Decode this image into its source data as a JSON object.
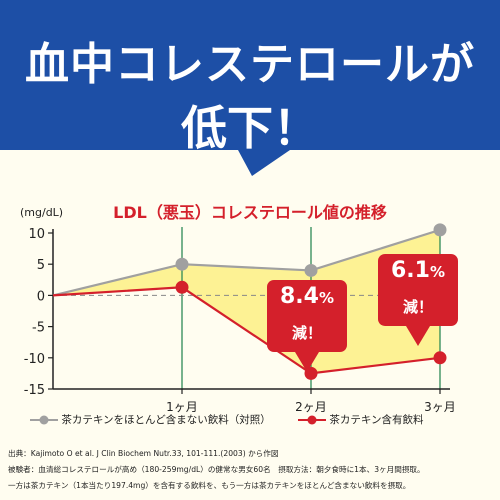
{
  "headline": {
    "line1": "血中コレステロールが",
    "line2": "低下！"
  },
  "colors": {
    "banner": "#1d4fa6",
    "control": "#a0a0a0",
    "catechin": "#d4202b",
    "fill": "#fdf18a",
    "grid": "#2e8b57"
  },
  "chart_data": {
    "type": "line",
    "title": "LDL（悪玉）コレステロール値の推移",
    "unit_label": "(mg/dL)",
    "categories": [
      "0",
      "1ヶ月",
      "2ヶ月",
      "3ヶ月"
    ],
    "x_tick_labels": [
      "1ヶ月",
      "2ヶ月",
      "3ヶ月"
    ],
    "ylim": [
      -15,
      10
    ],
    "yticks": [
      10,
      5,
      0,
      -5,
      -10,
      -15
    ],
    "grid": "vertical at months, dashed at 0",
    "legend_position": "bottom",
    "series": [
      {
        "name": "茶カテキンをほとんど含まない飲料（対照）",
        "values": [
          0,
          5,
          4,
          10.5
        ]
      },
      {
        "name": "茶カテキン含有飲料",
        "values": [
          0,
          1.3,
          -12.5,
          -10
        ]
      }
    ],
    "annotations": [
      {
        "at": "2ヶ月",
        "percent": "8.4",
        "unit": "%",
        "text": "減！"
      },
      {
        "at": "3ヶ月",
        "percent": "6.1",
        "unit": "%",
        "text": "減！"
      }
    ]
  },
  "footnotes": {
    "source": "出典：Kajimoto O et al. J Clin Biochem Nutr.33, 101-111.(2003) から作図",
    "subjects": "被験者：血清総コレステロールが高め（180-259mg/dL）の健常な男女60名　摂取方法：朝夕食時に1本、3ヶ月間摂取。",
    "method": "一方は茶カテキン（1本当たり197.4mg）を含有する飲料を、もう一方は茶カテキンをほとんど含まない飲料を摂取。"
  }
}
